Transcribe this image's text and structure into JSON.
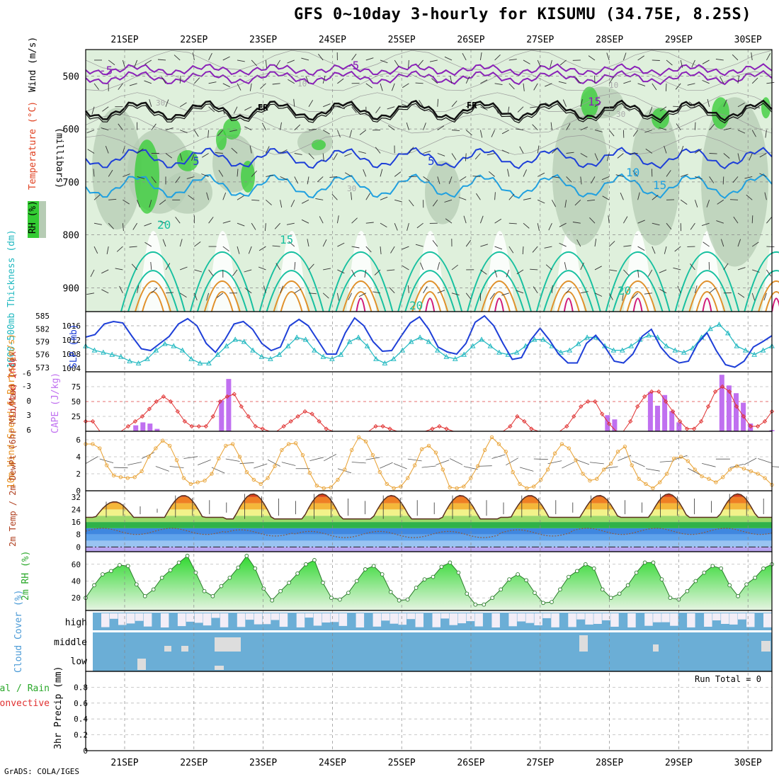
{
  "title": "GFS 0~10day 3-hourly for KISUMU (34.75E, 8.25S)",
  "credit": "GrADS: COLA/IGES",
  "colors": {
    "rh_green": "#33cc33",
    "rh_light": "#dff0dc",
    "rh_mid": "#b6ccb4",
    "temp_purple": "#8a22b8",
    "temp_blue": "#1e3fd8",
    "temp_lightblue": "#1fa0e0",
    "temp_teal": "#17c0a0",
    "temp_orange": "#e0902a",
    "temp_magenta": "#d01878",
    "slp": "#1e3fd8",
    "thickness": "#20b8c0",
    "cape": "#c070f0",
    "lifted_index": "#e03030",
    "wind_speed": "#e8a030",
    "barbs": "#555555",
    "cloud": "#6baed6",
    "cloud_gap": "#f3eef7"
  },
  "chart_data": [
    {
      "type": "line",
      "name": "upper_air",
      "ylabel": "(millibars)",
      "title_labels": [
        "RH (%)",
        "Temperature (°C)",
        "Wind (m/s)"
      ],
      "ylim": [
        945,
        450
      ],
      "y_ticks": [
        500,
        600,
        700,
        800,
        900
      ],
      "dates": [
        "21SEP",
        "22SEP",
        "23SEP",
        "24SEP",
        "25SEP",
        "26SEP",
        "27SEP",
        "28SEP",
        "29SEP",
        "30SEP"
      ],
      "freezing_label": "FR",
      "contour_labels": [
        "-5",
        "-5",
        "5",
        "5",
        "10",
        "15",
        "20",
        "15",
        "20",
        "20",
        "15"
      ],
      "rh_contour_labels": [
        "30",
        "10",
        "30",
        "10",
        "30"
      ]
    },
    {
      "type": "line",
      "name": "slp_thickness",
      "ylabel_left": "1000-500mb Thickness (dm)",
      "ylabel_right": "SLP (mb)",
      "thickness_ticks": [
        573,
        576,
        579,
        582,
        585
      ],
      "slp_ticks": [
        1004,
        1008,
        1012,
        1016
      ],
      "slp": [
        1012.8,
        1013.5,
        1016.5,
        1017.2,
        1016.8,
        1013,
        1009.5,
        1009,
        1011,
        1013,
        1016.5,
        1018,
        1016,
        1011,
        1008.5,
        1012,
        1016.5,
        1017.2,
        1015,
        1011,
        1009,
        1010,
        1016,
        1017.8,
        1016,
        1012,
        1008,
        1008,
        1014,
        1018.2,
        1016,
        1011.5,
        1008.8,
        1009,
        1013,
        1016.8,
        1018.5,
        1015,
        1010,
        1008.6,
        1008,
        1011,
        1017,
        1018.8,
        1016,
        1011,
        1006.5,
        1007,
        1012,
        1015.3,
        1012,
        1008,
        1005.5,
        1005.5,
        1011,
        1013.3,
        1010,
        1006,
        1005.5,
        1008,
        1013,
        1015,
        1010,
        1007,
        1005.5,
        1006,
        1011,
        1014,
        1009,
        1005,
        1004.3,
        1006,
        1010,
        1011.5,
        1013.2
      ],
      "thickness": [
        578,
        577,
        576.5,
        576,
        575.5,
        574.5,
        574,
        575,
        577,
        578.5,
        578,
        577,
        575,
        574,
        574,
        576,
        578,
        579.5,
        579,
        577,
        575.5,
        575,
        576,
        578,
        580,
        579.5,
        577,
        575.5,
        575,
        576,
        579,
        580,
        578,
        575,
        574,
        575,
        577,
        579,
        580,
        579,
        577,
        575.5,
        575,
        576,
        578,
        579.5,
        578,
        576.5,
        576,
        576.5,
        578,
        579.5,
        579.5,
        578,
        576.5,
        577,
        578.5,
        580,
        580,
        578,
        577,
        577,
        578,
        579.5,
        580.5,
        580,
        578,
        577,
        576.5,
        577.5,
        580,
        582,
        583,
        581,
        578,
        577,
        576,
        577,
        578
      ]
    },
    {
      "type": "bar",
      "name": "cape_lifted_index",
      "ylabel_left": "Lifted Index",
      "ylabel_right": "CAPE (J/kg)",
      "li_ticks": [
        "6",
        "3",
        "0",
        "-3",
        "-6"
      ],
      "cape_ticks": [
        25,
        50,
        75
      ],
      "cape": [
        0,
        0,
        0,
        0,
        0,
        0,
        0,
        10,
        15,
        13,
        4,
        0,
        0,
        0,
        0,
        0,
        0,
        0,
        0,
        52,
        88,
        0,
        0,
        0,
        0,
        0,
        0,
        0,
        0,
        0,
        0,
        0,
        0,
        0,
        0,
        0,
        0,
        0,
        0,
        0,
        0,
        0,
        0,
        0,
        0,
        0,
        0,
        0,
        0,
        0,
        0,
        0,
        0,
        0,
        0,
        0,
        0,
        0,
        0,
        0,
        0,
        0,
        0,
        0,
        0,
        0,
        0,
        0,
        0,
        0,
        0,
        0,
        0,
        27,
        20,
        0,
        0,
        0,
        0,
        66,
        43,
        61,
        34,
        15,
        0,
        0,
        0,
        0,
        0,
        95,
        77,
        64,
        48,
        13,
        0,
        0,
        2
      ],
      "lifted_index": [
        4,
        4,
        6,
        6,
        6,
        6,
        5,
        4,
        3,
        1.5,
        0,
        -1,
        0,
        2,
        4,
        5,
        5,
        5,
        3,
        0,
        -1,
        -1.5,
        1,
        3,
        5,
        5.5,
        6,
        6,
        5,
        4,
        3,
        2,
        2.5,
        4,
        5.5,
        6,
        6,
        6,
        6,
        6,
        6,
        5,
        5,
        5.5,
        6,
        6,
        6,
        6,
        6,
        5.5,
        5,
        5.5,
        6,
        6,
        6,
        6,
        6,
        6,
        6,
        6,
        5,
        3,
        4,
        5.5,
        6,
        6,
        6,
        6,
        5,
        3,
        1,
        0,
        0,
        2.5,
        4.5,
        6,
        6,
        4,
        1,
        -1,
        -2,
        -2,
        0,
        2,
        4,
        5.5,
        5.5,
        4,
        1,
        -2,
        -3,
        -2,
        1,
        3,
        5,
        5,
        4,
        2
      ]
    },
    {
      "type": "line",
      "name": "wind10m",
      "ylabel": "10m Wind Speed & Barbs (m/s)",
      "y_ticks": [
        0,
        2,
        4,
        6
      ],
      "values": [
        5.5,
        5.5,
        5.0,
        3.0,
        1.8,
        1.6,
        1.5,
        1.6,
        2.3,
        4.0,
        5.0,
        5.9,
        5.3,
        3.6,
        1.5,
        0.8,
        1.0,
        1.2,
        2.0,
        3.8,
        5.3,
        5.5,
        4.0,
        2.2,
        1.3,
        0.8,
        1.5,
        2.9,
        4.8,
        5.5,
        5.6,
        4.2,
        2.1,
        0.6,
        0.3,
        0.4,
        1.3,
        2.5,
        4.8,
        6.3,
        5.8,
        4.2,
        2.2,
        0.8,
        0.3,
        0.5,
        1.5,
        3.0,
        4.9,
        5.3,
        4.5,
        2.5,
        0.4,
        0.3,
        0.5,
        1.5,
        2.9,
        4.8,
        6.3,
        5.5,
        4.6,
        2.2,
        0.8,
        0.3,
        0.5,
        1.3,
        2.5,
        4.4,
        5.5,
        5.0,
        3.6,
        2.0,
        1.2,
        1.4,
        2.5,
        3.2,
        4.6,
        5.2,
        3.0,
        1.4,
        0.8,
        0.3,
        1.0,
        2.0,
        3.8,
        4.0,
        3.5,
        2.5,
        1.7,
        1.4,
        1.0,
        1.6,
        2.5,
        2.9,
        2.6,
        2.3,
        2.0,
        1.5,
        0.7
      ]
    },
    {
      "type": "area",
      "name": "temp2m",
      "ylabel": "2m Temp / 2m DewPt (6hr Min/Max) (°C)",
      "y_ticks": [
        0,
        8,
        16,
        24,
        32
      ],
      "days": 10,
      "tmax_daily": [
        29,
        33,
        34,
        34,
        33,
        33,
        33,
        33,
        34,
        34
      ],
      "tmin_daily": [
        19,
        19,
        18,
        18,
        18,
        18,
        19,
        19,
        19,
        19
      ],
      "dewpoint": [
        10,
        10,
        9,
        8,
        8,
        8,
        9,
        10,
        10,
        10
      ]
    },
    {
      "type": "area",
      "name": "rh2m",
      "ylabel": "2m RH (%)",
      "y_ticks": [
        20,
        40,
        60
      ],
      "values": [
        20,
        35,
        48,
        52,
        59,
        58,
        36,
        22,
        30,
        44,
        53,
        62,
        70,
        50,
        28,
        22,
        34,
        44,
        56,
        70,
        55,
        31,
        17,
        28,
        38,
        49,
        60,
        65,
        38,
        20,
        18,
        26,
        40,
        54,
        58,
        48,
        27,
        17,
        18,
        32,
        42,
        45,
        57,
        62,
        50,
        25,
        12,
        12,
        20,
        30,
        42,
        48,
        41,
        26,
        14,
        15,
        30,
        45,
        52,
        60,
        55,
        30,
        20,
        25,
        35,
        50,
        62,
        62,
        42,
        20,
        18,
        28,
        40,
        50,
        58,
        55,
        35,
        22,
        36,
        44,
        55,
        60
      ]
    },
    {
      "type": "bar",
      "name": "cloud_cover",
      "ylabel": "Cloud Cover (%)",
      "levels": [
        "high",
        "middle",
        "low"
      ]
    },
    {
      "type": "bar",
      "name": "precip3hr",
      "ylabel_left": "Total / Rain",
      "ylabel_left2": "Convective",
      "ylabel": "3hr Precip (mm)",
      "y_ticks": [
        "0",
        "0.2",
        "0.4",
        "0.6",
        "0.8"
      ],
      "ylim": [
        0,
        1
      ],
      "values": [],
      "run_total": "Run Total = 0"
    }
  ]
}
